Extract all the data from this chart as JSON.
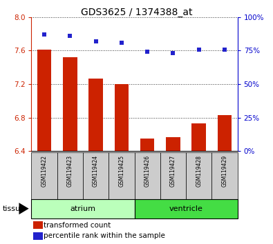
{
  "title": "GDS3625 / 1374388_at",
  "samples": [
    "GSM119422",
    "GSM119423",
    "GSM119424",
    "GSM119425",
    "GSM119426",
    "GSM119427",
    "GSM119428",
    "GSM119429"
  ],
  "transformed_count": [
    7.61,
    7.52,
    7.27,
    7.2,
    6.55,
    6.57,
    6.73,
    6.83
  ],
  "percentile_rank": [
    87,
    86,
    82,
    81,
    74,
    73,
    76,
    76
  ],
  "tissue_groups": [
    {
      "label": "atrium",
      "samples": [
        0,
        1,
        2,
        3
      ],
      "color": "#bbffbb"
    },
    {
      "label": "ventricle",
      "samples": [
        4,
        5,
        6,
        7
      ],
      "color": "#44dd44"
    }
  ],
  "ylim_left": [
    6.4,
    8.0
  ],
  "ylim_right": [
    0,
    100
  ],
  "yticks_left": [
    6.4,
    6.8,
    7.2,
    7.6,
    8.0
  ],
  "yticks_right": [
    0,
    25,
    50,
    75,
    100
  ],
  "bar_color": "#cc2200",
  "dot_color": "#2222cc",
  "grid_color": "#333333",
  "bg_color": "#ffffff",
  "sample_bg_color": "#cccccc",
  "left_tick_color": "#cc2200",
  "right_tick_color": "#0000cc",
  "legend_items": [
    "transformed count",
    "percentile rank within the sample"
  ],
  "tissue_label": "tissue"
}
